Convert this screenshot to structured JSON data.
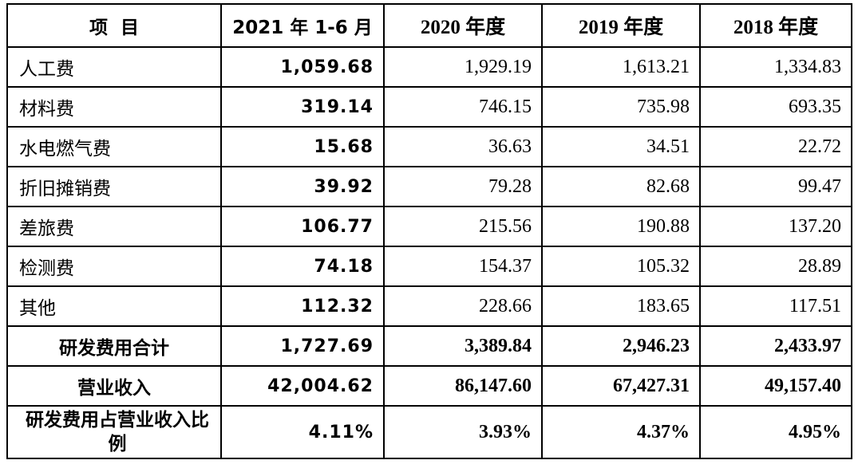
{
  "header": {
    "item": "项  目",
    "period1": "2021 年 1-6 月",
    "period2": "2020 年度",
    "period3": "2019 年度",
    "period4": "2018 年度"
  },
  "rows": [
    {
      "label": "人工费",
      "v1": "1,059.68",
      "v2": "1,929.19",
      "v3": "1,613.21",
      "v4": "1,334.83"
    },
    {
      "label": "材料费",
      "v1": "319.14",
      "v2": "746.15",
      "v3": "735.98",
      "v4": "693.35"
    },
    {
      "label": "水电燃气费",
      "v1": "15.68",
      "v2": "36.63",
      "v3": "34.51",
      "v4": "22.72"
    },
    {
      "label": "折旧摊销费",
      "v1": "39.92",
      "v2": "79.28",
      "v3": "82.68",
      "v4": "99.47"
    },
    {
      "label": "差旅费",
      "v1": "106.77",
      "v2": "215.56",
      "v3": "190.88",
      "v4": "137.20"
    },
    {
      "label": "检测费",
      "v1": "74.18",
      "v2": "154.37",
      "v3": "105.32",
      "v4": "28.89"
    },
    {
      "label": "其他",
      "v1": "112.32",
      "v2": "228.66",
      "v3": "183.65",
      "v4": "117.51"
    },
    {
      "label": "研发费用合计",
      "v1": "1,727.69",
      "v2": "3,389.84",
      "v3": "2,946.23",
      "v4": "2,433.97"
    },
    {
      "label": "营业收入",
      "v1": "42,004.62",
      "v2": "86,147.60",
      "v3": "67,427.31",
      "v4": "49,157.40"
    },
    {
      "label": "研发费用占营业收入比例",
      "v1": "4.11%",
      "v2": "3.93%",
      "v3": "4.37%",
      "v4": "4.95%"
    }
  ]
}
